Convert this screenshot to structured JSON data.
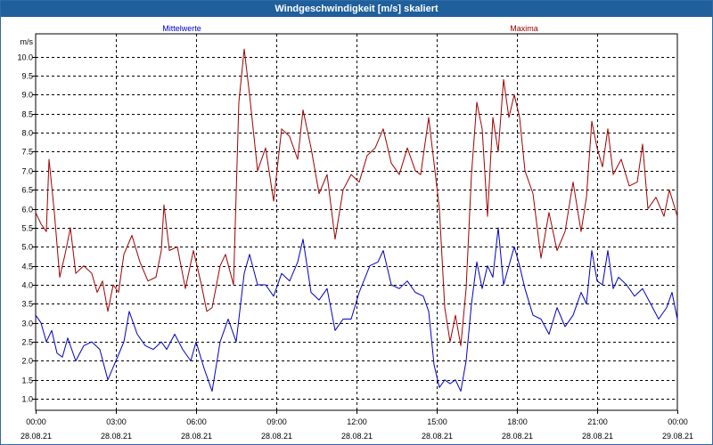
{
  "window": {
    "title": "Windgeschwindigkeit [m/s] skaliert"
  },
  "chart_data": {
    "type": "line",
    "title": "Windgeschwindigkeit [m/s] skaliert",
    "ylabel": "m/s",
    "ylim": [
      0.7,
      10.6
    ],
    "y_ticks": [
      "1.0",
      "1.5",
      "2.0",
      "2.5",
      "3.0",
      "3.5",
      "4.0",
      "4.5",
      "5.0",
      "5.5",
      "6.0",
      "6.5",
      "7.0",
      "7.5",
      "8.0",
      "8.5",
      "9.0",
      "9.5",
      "10.0"
    ],
    "x_range_hours": [
      0,
      24
    ],
    "x_ticks": [
      {
        "time": "00:00",
        "date": "28.08.21"
      },
      {
        "time": "03:00",
        "date": "28.08.21"
      },
      {
        "time": "06:00",
        "date": "28.08.21"
      },
      {
        "time": "09:00",
        "date": "28.08.21"
      },
      {
        "time": "12:00",
        "date": "28.08.21"
      },
      {
        "time": "15:00",
        "date": "28.08.21"
      },
      {
        "time": "18:00",
        "date": "28.08.21"
      },
      {
        "time": "21:00",
        "date": "28.08.21"
      },
      {
        "time": "00:00",
        "date": "29.08.21"
      }
    ],
    "grid": true,
    "series": [
      {
        "name": "Mittelwerte",
        "color": "#0000c0",
        "points": [
          [
            0.0,
            3.2
          ],
          [
            0.2,
            3.0
          ],
          [
            0.4,
            2.5
          ],
          [
            0.6,
            2.8
          ],
          [
            0.8,
            2.2
          ],
          [
            1.0,
            2.1
          ],
          [
            1.2,
            2.6
          ],
          [
            1.5,
            2.0
          ],
          [
            1.8,
            2.4
          ],
          [
            2.1,
            2.5
          ],
          [
            2.4,
            2.3
          ],
          [
            2.7,
            1.5
          ],
          [
            3.0,
            2.0
          ],
          [
            3.3,
            2.5
          ],
          [
            3.5,
            3.3
          ],
          [
            3.8,
            2.7
          ],
          [
            4.1,
            2.4
          ],
          [
            4.4,
            2.3
          ],
          [
            4.7,
            2.5
          ],
          [
            4.9,
            2.3
          ],
          [
            5.2,
            2.7
          ],
          [
            5.5,
            2.3
          ],
          [
            5.8,
            2.0
          ],
          [
            6.0,
            2.5
          ],
          [
            6.3,
            1.8
          ],
          [
            6.6,
            1.2
          ],
          [
            6.9,
            2.5
          ],
          [
            7.2,
            3.1
          ],
          [
            7.5,
            2.5
          ],
          [
            7.8,
            4.3
          ],
          [
            8.0,
            4.8
          ],
          [
            8.3,
            4.0
          ],
          [
            8.6,
            4.0
          ],
          [
            8.9,
            3.7
          ],
          [
            9.2,
            4.3
          ],
          [
            9.5,
            4.1
          ],
          [
            9.8,
            4.6
          ],
          [
            10.0,
            5.2
          ],
          [
            10.3,
            3.8
          ],
          [
            10.6,
            3.6
          ],
          [
            10.9,
            3.9
          ],
          [
            11.2,
            2.8
          ],
          [
            11.5,
            3.1
          ],
          [
            11.8,
            3.1
          ],
          [
            12.1,
            3.8
          ],
          [
            12.5,
            4.5
          ],
          [
            12.8,
            4.6
          ],
          [
            13.0,
            4.9
          ],
          [
            13.3,
            4.0
          ],
          [
            13.6,
            3.9
          ],
          [
            13.9,
            4.1
          ],
          [
            14.2,
            3.8
          ],
          [
            14.5,
            3.7
          ],
          [
            14.7,
            3.3
          ],
          [
            14.9,
            1.9
          ],
          [
            15.1,
            1.3
          ],
          [
            15.3,
            1.5
          ],
          [
            15.5,
            1.4
          ],
          [
            15.7,
            1.5
          ],
          [
            15.9,
            1.2
          ],
          [
            16.1,
            2.0
          ],
          [
            16.3,
            3.5
          ],
          [
            16.5,
            4.6
          ],
          [
            16.7,
            3.9
          ],
          [
            16.9,
            4.5
          ],
          [
            17.1,
            4.2
          ],
          [
            17.3,
            5.5
          ],
          [
            17.5,
            4.0
          ],
          [
            17.7,
            4.5
          ],
          [
            17.9,
            5.0
          ],
          [
            18.1,
            4.5
          ],
          [
            18.3,
            3.9
          ],
          [
            18.6,
            3.2
          ],
          [
            18.9,
            3.1
          ],
          [
            19.2,
            2.7
          ],
          [
            19.5,
            3.4
          ],
          [
            19.8,
            2.9
          ],
          [
            20.1,
            3.2
          ],
          [
            20.4,
            3.8
          ],
          [
            20.6,
            3.5
          ],
          [
            20.8,
            4.9
          ],
          [
            21.0,
            4.1
          ],
          [
            21.2,
            4.0
          ],
          [
            21.4,
            4.9
          ],
          [
            21.6,
            3.9
          ],
          [
            21.8,
            4.2
          ],
          [
            22.1,
            4.0
          ],
          [
            22.4,
            3.7
          ],
          [
            22.7,
            3.9
          ],
          [
            23.0,
            3.5
          ],
          [
            23.3,
            3.1
          ],
          [
            23.6,
            3.4
          ],
          [
            23.8,
            3.8
          ],
          [
            24.0,
            3.1
          ]
        ]
      },
      {
        "name": "Maxima",
        "color": "#a00000",
        "points": [
          [
            0.0,
            5.9
          ],
          [
            0.2,
            5.6
          ],
          [
            0.4,
            5.4
          ],
          [
            0.5,
            7.3
          ],
          [
            0.7,
            5.9
          ],
          [
            0.9,
            4.2
          ],
          [
            1.1,
            4.8
          ],
          [
            1.3,
            5.5
          ],
          [
            1.5,
            4.3
          ],
          [
            1.8,
            4.5
          ],
          [
            2.1,
            4.3
          ],
          [
            2.3,
            3.8
          ],
          [
            2.5,
            4.1
          ],
          [
            2.7,
            3.3
          ],
          [
            2.9,
            4.0
          ],
          [
            3.1,
            3.8
          ],
          [
            3.3,
            4.8
          ],
          [
            3.6,
            5.3
          ],
          [
            3.9,
            4.6
          ],
          [
            4.2,
            4.1
          ],
          [
            4.5,
            4.2
          ],
          [
            4.7,
            4.9
          ],
          [
            4.8,
            6.1
          ],
          [
            5.0,
            4.9
          ],
          [
            5.3,
            5.0
          ],
          [
            5.6,
            3.9
          ],
          [
            5.9,
            4.9
          ],
          [
            6.2,
            4.0
          ],
          [
            6.4,
            3.3
          ],
          [
            6.6,
            3.4
          ],
          [
            6.9,
            4.5
          ],
          [
            7.1,
            4.8
          ],
          [
            7.4,
            4.0
          ],
          [
            7.6,
            8.8
          ],
          [
            7.8,
            10.2
          ],
          [
            8.0,
            9.0
          ],
          [
            8.3,
            7.0
          ],
          [
            8.6,
            7.6
          ],
          [
            8.9,
            6.2
          ],
          [
            9.2,
            8.1
          ],
          [
            9.5,
            7.9
          ],
          [
            9.8,
            7.3
          ],
          [
            10.0,
            8.6
          ],
          [
            10.3,
            7.6
          ],
          [
            10.6,
            6.4
          ],
          [
            10.9,
            6.9
          ],
          [
            11.2,
            5.2
          ],
          [
            11.5,
            6.5
          ],
          [
            11.8,
            6.9
          ],
          [
            12.1,
            6.7
          ],
          [
            12.4,
            7.4
          ],
          [
            12.7,
            7.6
          ],
          [
            13.0,
            8.1
          ],
          [
            13.3,
            7.2
          ],
          [
            13.6,
            6.9
          ],
          [
            13.9,
            7.6
          ],
          [
            14.2,
            7.0
          ],
          [
            14.4,
            6.9
          ],
          [
            14.7,
            8.4
          ],
          [
            14.9,
            7.2
          ],
          [
            15.1,
            6.0
          ],
          [
            15.3,
            3.4
          ],
          [
            15.5,
            2.5
          ],
          [
            15.7,
            3.2
          ],
          [
            15.9,
            2.4
          ],
          [
            16.1,
            3.9
          ],
          [
            16.3,
            6.9
          ],
          [
            16.5,
            8.8
          ],
          [
            16.7,
            8.1
          ],
          [
            16.9,
            5.8
          ],
          [
            17.1,
            8.4
          ],
          [
            17.3,
            7.5
          ],
          [
            17.5,
            9.4
          ],
          [
            17.7,
            8.4
          ],
          [
            17.9,
            9.0
          ],
          [
            18.1,
            8.4
          ],
          [
            18.3,
            7.0
          ],
          [
            18.6,
            6.4
          ],
          [
            18.9,
            4.7
          ],
          [
            19.2,
            5.9
          ],
          [
            19.5,
            4.9
          ],
          [
            19.8,
            5.4
          ],
          [
            20.1,
            6.7
          ],
          [
            20.4,
            5.4
          ],
          [
            20.6,
            6.3
          ],
          [
            20.8,
            8.3
          ],
          [
            21.0,
            7.6
          ],
          [
            21.2,
            7.1
          ],
          [
            21.4,
            8.1
          ],
          [
            21.6,
            6.9
          ],
          [
            21.9,
            7.3
          ],
          [
            22.2,
            6.6
          ],
          [
            22.5,
            6.7
          ],
          [
            22.7,
            7.7
          ],
          [
            22.9,
            6.0
          ],
          [
            23.2,
            6.3
          ],
          [
            23.5,
            5.8
          ],
          [
            23.7,
            6.5
          ],
          [
            24.0,
            5.8
          ]
        ]
      }
    ]
  }
}
